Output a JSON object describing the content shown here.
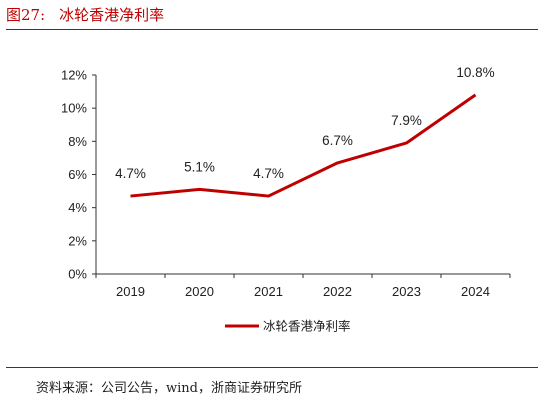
{
  "figure": {
    "label": "图27:",
    "title": "冰轮香港净利率",
    "source": "资料来源：公司公告，wind，浙商证券研究所"
  },
  "colors": {
    "accent": "#c00000",
    "series": "#c00000",
    "axis": "#333333",
    "text": "#222222"
  },
  "chart_data": {
    "type": "line",
    "x": [
      "2019",
      "2020",
      "2021",
      "2022",
      "2023",
      "2024"
    ],
    "series": [
      {
        "name": "冰轮香港净利率",
        "values": [
          4.7,
          5.1,
          4.7,
          6.7,
          7.9,
          10.8
        ],
        "labels": [
          "4.7%",
          "5.1%",
          "4.7%",
          "6.7%",
          "7.9%",
          "10.8%"
        ]
      }
    ],
    "yticks": [
      "0%",
      "2%",
      "4%",
      "6%",
      "8%",
      "10%",
      "12%"
    ],
    "ylim": [
      0,
      12
    ],
    "ylabel": "",
    "xlabel": "",
    "grid": false,
    "legend": "bottom-center"
  }
}
